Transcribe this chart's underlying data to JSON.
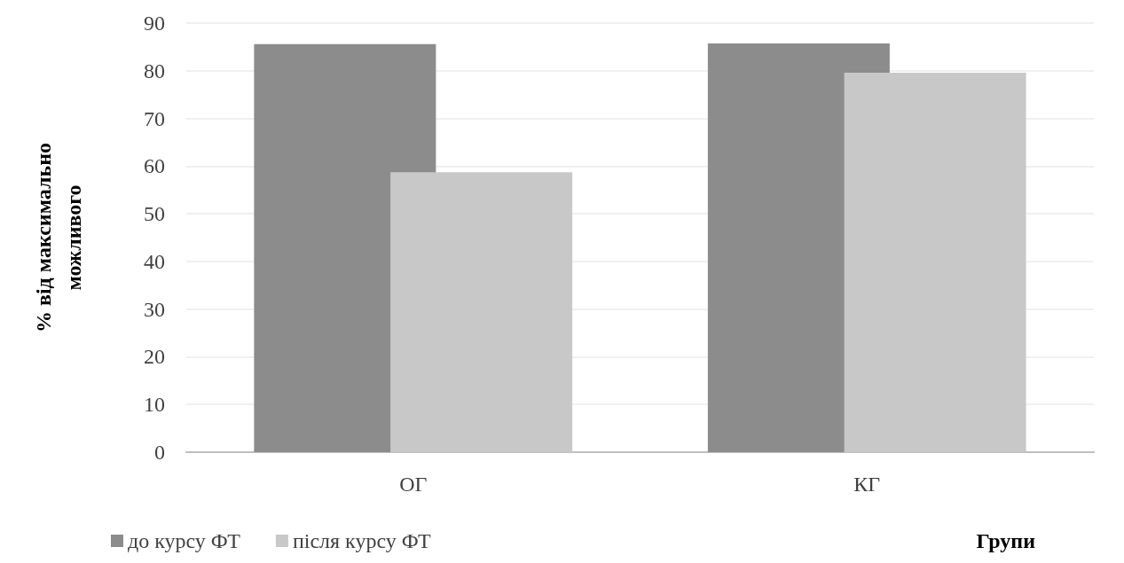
{
  "chart_data": {
    "type": "bar",
    "categories": [
      "ОГ",
      "КГ"
    ],
    "series": [
      {
        "name": "до курсу ФТ",
        "color": "#8c8c8c",
        "values": [
          85.6,
          85.7
        ]
      },
      {
        "name": "після курсу ФТ",
        "color": "#c8c8c8",
        "values": [
          58.7,
          79.6
        ]
      }
    ],
    "xlabel": "Групи",
    "ylabel": "% від максимально\nможливого",
    "ylim": [
      0,
      90
    ],
    "yticks": [
      0,
      10,
      20,
      30,
      40,
      50,
      60,
      70,
      80,
      90
    ],
    "grid": "y",
    "legend": "bottom left"
  }
}
